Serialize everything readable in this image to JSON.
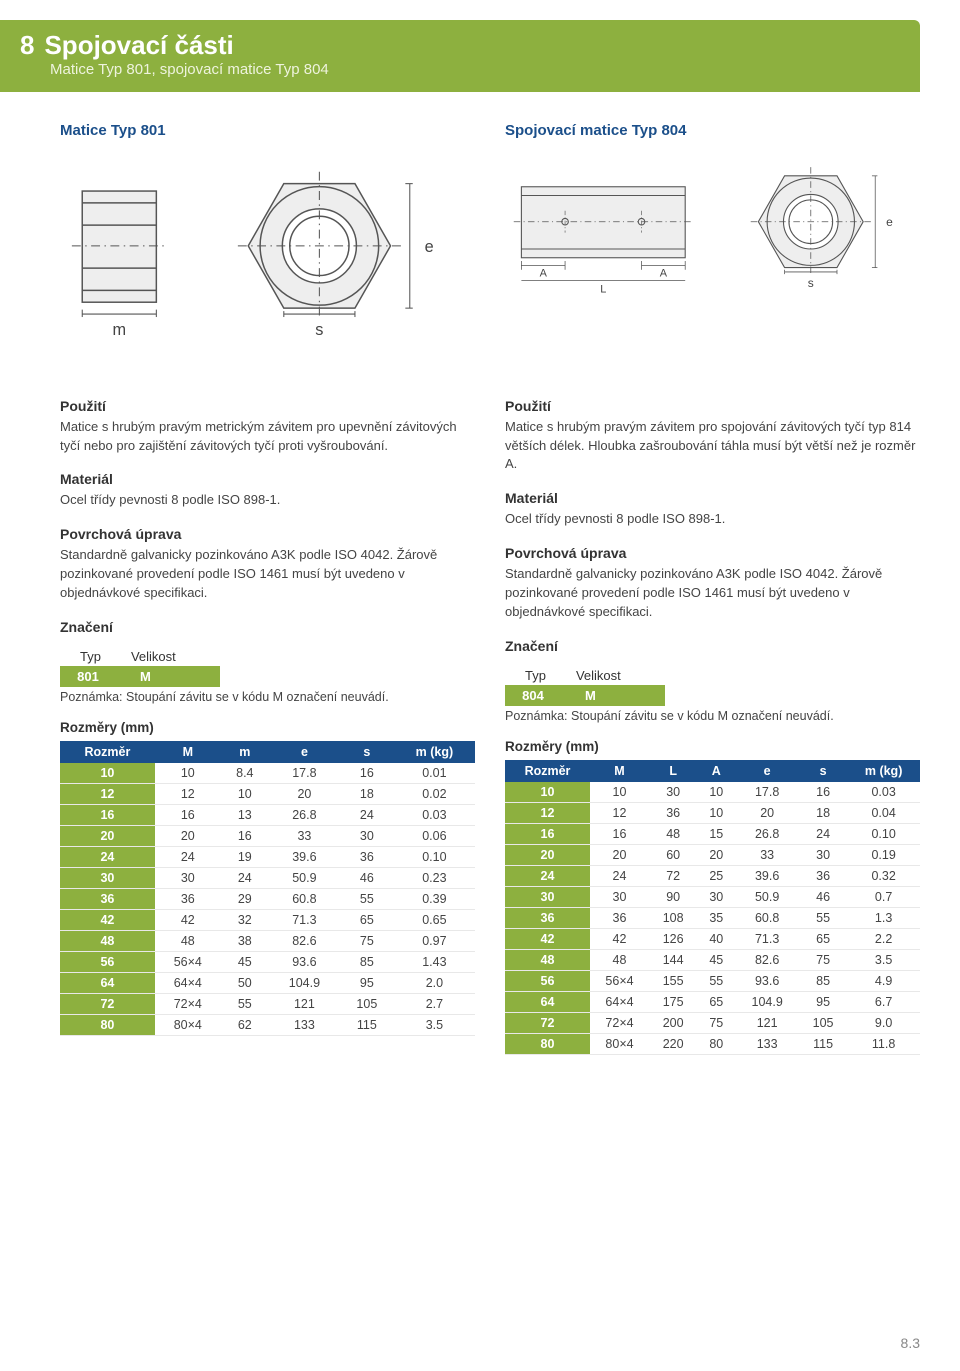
{
  "header": {
    "num": "8",
    "title": "Spojovací části",
    "subtitle": "Matice Typ 801, spojovací matice Typ 804"
  },
  "left": {
    "product_title": "Matice Typ 801",
    "diagram_labels": [
      "m",
      "s",
      "e"
    ],
    "usage_h": "Použití",
    "usage": "Matice s hrubým pravým metrickým závitem pro upevnění závitových tyčí nebo pro zajištění závitových tyčí proti vyšroubování.",
    "material_h": "Materiál",
    "material": "Ocel třídy pevnosti 8 podle ISO 898-1.",
    "surface_h": "Povrchová úprava",
    "surface": "Standardně galvanicky pozinkováno A3K podle ISO 4042. Žárově pozinkované provedení podle ISO 1461 musí být uvedeno v objednávkové specifikaci.",
    "marking_h": "Značení",
    "marking_labels": [
      "Typ",
      "Velikost"
    ],
    "marking_vals": [
      "801",
      "M"
    ],
    "marking_note": "Poznámka: Stoupání závitu se v kódu M označení neuvádí.",
    "dims_h": "Rozměry (mm)",
    "table": {
      "columns": [
        "Rozměr",
        "M",
        "m",
        "e",
        "s",
        "m (kg)"
      ],
      "rows": [
        [
          "10",
          "10",
          "8.4",
          "17.8",
          "16",
          "0.01"
        ],
        [
          "12",
          "12",
          "10",
          "20",
          "18",
          "0.02"
        ],
        [
          "16",
          "16",
          "13",
          "26.8",
          "24",
          "0.03"
        ],
        [
          "20",
          "20",
          "16",
          "33",
          "30",
          "0.06"
        ],
        [
          "24",
          "24",
          "19",
          "39.6",
          "36",
          "0.10"
        ],
        [
          "30",
          "30",
          "24",
          "50.9",
          "46",
          "0.23"
        ],
        [
          "36",
          "36",
          "29",
          "60.8",
          "55",
          "0.39"
        ],
        [
          "42",
          "42",
          "32",
          "71.3",
          "65",
          "0.65"
        ],
        [
          "48",
          "48",
          "38",
          "82.6",
          "75",
          "0.97"
        ],
        [
          "56",
          "56×4",
          "45",
          "93.6",
          "85",
          "1.43"
        ],
        [
          "64",
          "64×4",
          "50",
          "104.9",
          "95",
          "2.0"
        ],
        [
          "72",
          "72×4",
          "55",
          "121",
          "105",
          "2.7"
        ],
        [
          "80",
          "80×4",
          "62",
          "133",
          "115",
          "3.5"
        ]
      ]
    }
  },
  "right": {
    "product_title": "Spojovací matice Typ 804",
    "diagram_labels": [
      "A",
      "A",
      "L",
      "s",
      "e"
    ],
    "usage_h": "Použití",
    "usage": "Matice s hrubým pravým závitem pro spojování závitových tyčí typ 814 větších délek. Hloubka zašroubování táhla musí být větší než je rozměr A.",
    "material_h": "Materiál",
    "material": "Ocel třídy pevnosti 8 podle ISO 898-1.",
    "surface_h": "Povrchová úprava",
    "surface": "Standardně galvanicky pozinkováno A3K podle ISO 4042. Žárově pozinkované provedení podle ISO 1461 musí být uvedeno v objednávkové specifikaci.",
    "marking_h": "Značení",
    "marking_labels": [
      "Typ",
      "Velikost"
    ],
    "marking_vals": [
      "804",
      "M"
    ],
    "marking_note": "Poznámka: Stoupání závitu se v kódu M označení neuvádí.",
    "dims_h": "Rozměry (mm)",
    "table": {
      "columns": [
        "Rozměr",
        "M",
        "L",
        "A",
        "e",
        "s",
        "m (kg)"
      ],
      "rows": [
        [
          "10",
          "10",
          "30",
          "10",
          "17.8",
          "16",
          "0.03"
        ],
        [
          "12",
          "12",
          "36",
          "10",
          "20",
          "18",
          "0.04"
        ],
        [
          "16",
          "16",
          "48",
          "15",
          "26.8",
          "24",
          "0.10"
        ],
        [
          "20",
          "20",
          "60",
          "20",
          "33",
          "30",
          "0.19"
        ],
        [
          "24",
          "24",
          "72",
          "25",
          "39.6",
          "36",
          "0.32"
        ],
        [
          "30",
          "30",
          "90",
          "30",
          "50.9",
          "46",
          "0.7"
        ],
        [
          "36",
          "36",
          "108",
          "35",
          "60.8",
          "55",
          "1.3"
        ],
        [
          "42",
          "42",
          "126",
          "40",
          "71.3",
          "65",
          "2.2"
        ],
        [
          "48",
          "48",
          "144",
          "45",
          "82.6",
          "75",
          "3.5"
        ],
        [
          "56",
          "56×4",
          "155",
          "55",
          "93.6",
          "85",
          "4.9"
        ],
        [
          "64",
          "64×4",
          "175",
          "65",
          "104.9",
          "95",
          "6.7"
        ],
        [
          "72",
          "72×4",
          "200",
          "75",
          "121",
          "105",
          "9.0"
        ],
        [
          "80",
          "80×4",
          "220",
          "80",
          "133",
          "115",
          "11.8"
        ]
      ]
    }
  },
  "footer": "8.3"
}
